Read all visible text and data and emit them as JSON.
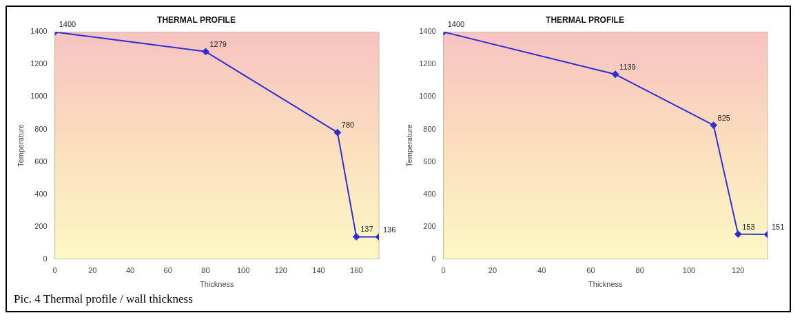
{
  "chart_data": [
    {
      "type": "line",
      "title": "THERMAL PROFILE",
      "xlabel": "Thickness",
      "ylabel": "Temperature",
      "x": [
        0,
        80,
        150,
        160,
        172
      ],
      "series": [
        {
          "color": "#2e2ed6",
          "values": [
            1400,
            1279,
            780,
            137,
            136
          ]
        }
      ],
      "xlim": [
        0,
        172
      ],
      "xticks": [
        0,
        20,
        40,
        60,
        80,
        100,
        120,
        140,
        160
      ],
      "ylim": [
        0,
        1400
      ],
      "yticks": [
        0,
        200,
        400,
        600,
        800,
        1000,
        1200,
        1400
      ],
      "marker": "diamond",
      "data_labels": true,
      "annotations": [
        "Pic. 4 Thermal profile / wall thickness"
      ]
    },
    {
      "type": "line",
      "title": "THERMAL PROFILE",
      "xlabel": "Thickness",
      "ylabel": "Temperature",
      "x": [
        0,
        70,
        110,
        120,
        132
      ],
      "series": [
        {
          "color": "#2e2ed6",
          "values": [
            1400,
            1139,
            825,
            153,
            151
          ]
        }
      ],
      "xlim": [
        0,
        132
      ],
      "xticks": [
        0,
        20,
        40,
        60,
        80,
        100,
        120
      ],
      "ylim": [
        0,
        1400
      ],
      "yticks": [
        0,
        200,
        400,
        600,
        800,
        1000,
        1200,
        1400
      ],
      "marker": "diamond",
      "data_labels": true
    }
  ]
}
